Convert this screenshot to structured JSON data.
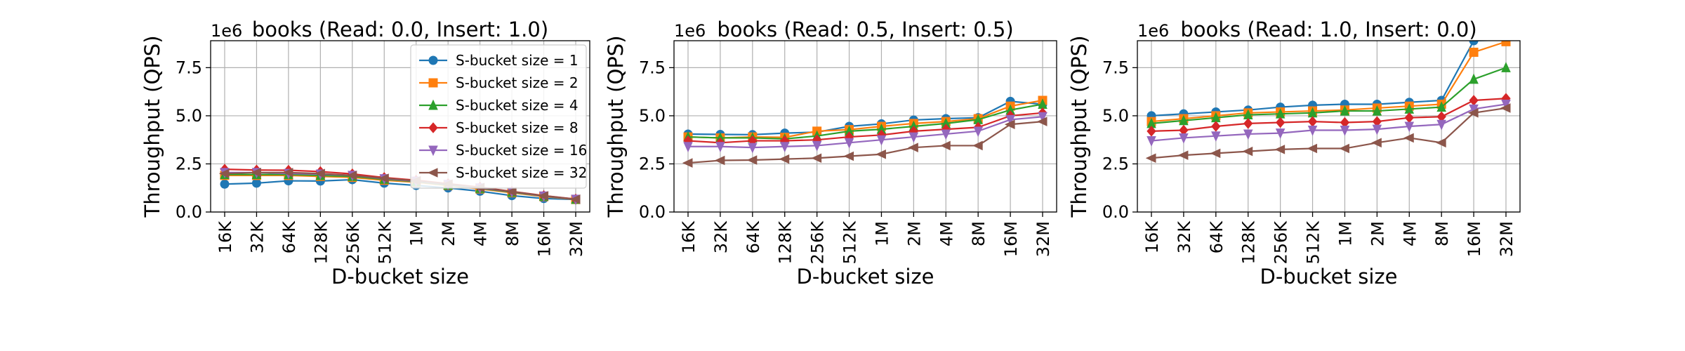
{
  "colors": {
    "s1": "#1f77b4",
    "s2": "#ff7f0e",
    "s4": "#2ca02c",
    "s8": "#d62728",
    "s16": "#9467bd",
    "s32": "#8c564b",
    "grid": "#b0b0b0"
  },
  "legend_panel": 0,
  "legend_placement": "top-right",
  "chart_data": [
    {
      "type": "line",
      "title": "books (Read: 0.0, Insert: 1.0)",
      "xlabel": "D-bucket size",
      "ylabel": "Throughput (QPS)",
      "y_offset_label": "1e6",
      "ylim": [
        0,
        8900000
      ],
      "yticks": [
        0,
        2500000,
        5000000,
        7500000
      ],
      "ytick_labels": [
        "0.0",
        "2.5",
        "5.0",
        "7.5"
      ],
      "grid": true,
      "categories": [
        "16K",
        "32K",
        "64K",
        "128K",
        "256K",
        "512K",
        "1M",
        "2M",
        "4M",
        "8M",
        "16M",
        "32M"
      ],
      "series": [
        {
          "name": "S-bucket size = 1",
          "color": "#1f77b4",
          "marker": "circle",
          "values": [
            1450000,
            1500000,
            1620000,
            1610000,
            1680000,
            1500000,
            1380000,
            1250000,
            1080000,
            850000,
            700000,
            650000
          ]
        },
        {
          "name": "S-bucket size = 2",
          "color": "#ff7f0e",
          "marker": "square",
          "values": [
            1900000,
            1900000,
            1900000,
            1850000,
            1800000,
            1650000,
            1550000,
            1380000,
            1200000,
            1000000,
            800000,
            650000
          ]
        },
        {
          "name": "S-bucket size = 4",
          "color": "#2ca02c",
          "marker": "triangle-up",
          "values": [
            1950000,
            1950000,
            1950000,
            1900000,
            1850000,
            1700000,
            1580000,
            1400000,
            1230000,
            1030000,
            820000,
            660000
          ]
        },
        {
          "name": "S-bucket size = 8",
          "color": "#d62728",
          "marker": "diamond",
          "values": [
            2220000,
            2180000,
            2170000,
            2100000,
            1980000,
            1790000,
            1650000,
            1470000,
            1290000,
            1070000,
            850000,
            670000
          ]
        },
        {
          "name": "S-bucket size = 16",
          "color": "#9467bd",
          "marker": "triangle-down",
          "values": [
            2050000,
            2050000,
            2000000,
            1970000,
            1900000,
            1730000,
            1600000,
            1430000,
            1250000,
            1050000,
            830000,
            660000
          ]
        },
        {
          "name": "S-bucket size = 32",
          "color": "#8c564b",
          "marker": "triangle-left",
          "values": [
            2000000,
            2050000,
            2050000,
            2000000,
            1900000,
            1750000,
            1620000,
            1450000,
            1270000,
            1060000,
            840000,
            660000
          ]
        }
      ]
    },
    {
      "type": "line",
      "title": "books (Read: 0.5, Insert: 0.5)",
      "xlabel": "D-bucket size",
      "ylabel": "Throughput (QPS)",
      "y_offset_label": "1e6",
      "ylim": [
        0,
        8900000
      ],
      "yticks": [
        0,
        2500000,
        5000000,
        7500000
      ],
      "ytick_labels": [
        "0.0",
        "2.5",
        "5.0",
        "7.5"
      ],
      "grid": true,
      "categories": [
        "16K",
        "32K",
        "64K",
        "128K",
        "256K",
        "512K",
        "1M",
        "2M",
        "4M",
        "8M",
        "16M",
        "32M"
      ],
      "series": [
        {
          "name": "S-bucket size = 1",
          "color": "#1f77b4",
          "marker": "circle",
          "values": [
            4050000,
            4030000,
            4020000,
            4100000,
            4150000,
            4450000,
            4580000,
            4780000,
            4850000,
            4900000,
            5750000,
            5600000
          ]
        },
        {
          "name": "S-bucket size = 2",
          "color": "#ff7f0e",
          "marker": "square",
          "values": [
            3900000,
            3850000,
            3900000,
            3880000,
            4200000,
            4280000,
            4450000,
            4600000,
            4700000,
            4850000,
            5500000,
            5800000
          ]
        },
        {
          "name": "S-bucket size = 4",
          "color": "#2ca02c",
          "marker": "triangle-up",
          "values": [
            3900000,
            3850000,
            3850000,
            3800000,
            3950000,
            4200000,
            4300000,
            4450000,
            4600000,
            4800000,
            5300000,
            5600000
          ]
        },
        {
          "name": "S-bucket size = 8",
          "color": "#d62728",
          "marker": "diamond",
          "values": [
            3700000,
            3600000,
            3700000,
            3700000,
            3750000,
            3900000,
            4000000,
            4200000,
            4300000,
            4400000,
            5000000,
            5150000
          ]
        },
        {
          "name": "S-bucket size = 16",
          "color": "#9467bd",
          "marker": "triangle-down",
          "values": [
            3400000,
            3400000,
            3350000,
            3400000,
            3450000,
            3600000,
            3750000,
            3900000,
            4050000,
            4200000,
            4800000,
            4950000
          ]
        },
        {
          "name": "S-bucket size = 32",
          "color": "#8c564b",
          "marker": "triangle-left",
          "values": [
            2550000,
            2680000,
            2700000,
            2750000,
            2800000,
            2900000,
            3000000,
            3350000,
            3450000,
            3450000,
            4550000,
            4700000
          ]
        }
      ]
    },
    {
      "type": "line",
      "title": "books (Read: 1.0, Insert: 0.0)",
      "xlabel": "D-bucket size",
      "ylabel": "Throughput (QPS)",
      "y_offset_label": "1e6",
      "ylim": [
        0,
        8900000
      ],
      "yticks": [
        0,
        2500000,
        5000000,
        7500000
      ],
      "ytick_labels": [
        "0.0",
        "2.5",
        "5.0",
        "7.5"
      ],
      "grid": true,
      "categories": [
        "16K",
        "32K",
        "64K",
        "128K",
        "256K",
        "512K",
        "1M",
        "2M",
        "4M",
        "8M",
        "16M",
        "32M"
      ],
      "series": [
        {
          "name": "S-bucket size = 1",
          "color": "#1f77b4",
          "marker": "circle",
          "values": [
            5000000,
            5100000,
            5200000,
            5300000,
            5450000,
            5550000,
            5600000,
            5600000,
            5700000,
            5800000,
            8900000,
            8950000
          ]
        },
        {
          "name": "S-bucket size = 2",
          "color": "#ff7f0e",
          "marker": "square",
          "values": [
            4700000,
            4850000,
            5000000,
            5150000,
            5200000,
            5250000,
            5300000,
            5400000,
            5500000,
            5600000,
            8300000,
            8850000
          ]
        },
        {
          "name": "S-bucket size = 4",
          "color": "#2ca02c",
          "marker": "triangle-up",
          "values": [
            4600000,
            4750000,
            4900000,
            5050000,
            5100000,
            5150000,
            5250000,
            5250000,
            5350000,
            5450000,
            6900000,
            7500000
          ]
        },
        {
          "name": "S-bucket size = 8",
          "color": "#d62728",
          "marker": "diamond",
          "values": [
            4200000,
            4250000,
            4450000,
            4600000,
            4650000,
            4700000,
            4650000,
            4700000,
            4900000,
            4950000,
            5800000,
            5900000
          ]
        },
        {
          "name": "S-bucket size = 16",
          "color": "#9467bd",
          "marker": "triangle-down",
          "values": [
            3700000,
            3850000,
            3950000,
            4050000,
            4100000,
            4250000,
            4250000,
            4300000,
            4450000,
            4550000,
            5350000,
            5600000
          ]
        },
        {
          "name": "S-bucket size = 32",
          "color": "#8c564b",
          "marker": "triangle-left",
          "values": [
            2800000,
            2950000,
            3050000,
            3150000,
            3250000,
            3300000,
            3300000,
            3600000,
            3850000,
            3600000,
            5150000,
            5400000
          ]
        }
      ]
    }
  ]
}
